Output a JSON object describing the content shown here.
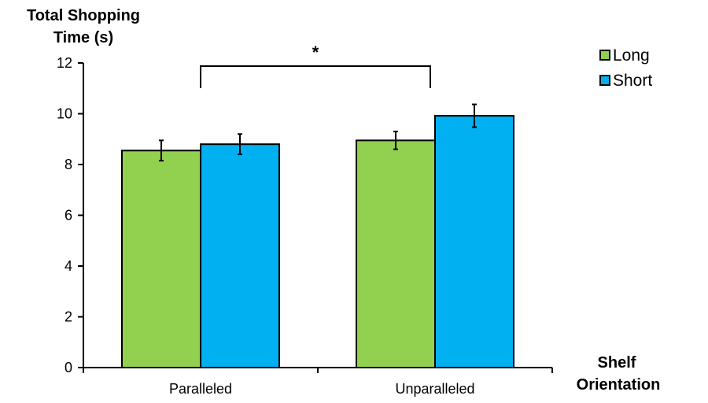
{
  "chart_data": {
    "type": "bar",
    "ylabel_line1": "Total Shopping",
    "ylabel_line2": "Time (s)",
    "xlabel_line1": "Shelf",
    "xlabel_line2": "Orientation",
    "ylim": [
      0,
      12
    ],
    "yticks": [
      "0",
      "2",
      "4",
      "6",
      "8",
      "10",
      "12"
    ],
    "categories": [
      "Paralleled",
      "Unparalleled"
    ],
    "series": [
      {
        "name": "Long",
        "color": "#92d050",
        "values": [
          8.55,
          8.95
        ],
        "errors": [
          0.4,
          0.35
        ]
      },
      {
        "name": "Short",
        "color": "#00b0f0",
        "values": [
          8.8,
          9.92
        ],
        "errors": [
          0.4,
          0.45
        ]
      }
    ],
    "legend_position": "top-right",
    "significance": {
      "label": "*",
      "from": "Paralleled",
      "to": "Unparalleled"
    },
    "grid": false
  }
}
